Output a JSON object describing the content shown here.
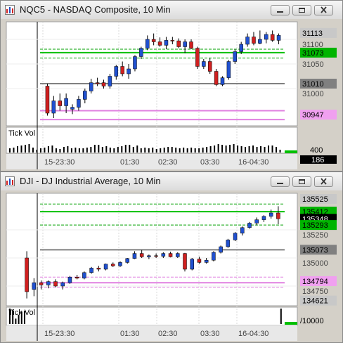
{
  "windows": [
    {
      "title": "NQC5 - NASDAQ Composite, 10 Min",
      "indicator_label": "Tick Vol",
      "price_labels": [
        "31113",
        "31100",
        "31073",
        "31050",
        "31010",
        "31000",
        "30947",
        "400",
        "186"
      ],
      "time_labels": [
        "15-23:30",
        "01:30",
        "02:30",
        "03:30",
        "16-04:30"
      ],
      "chart_data": {
        "type": "candlestick",
        "ylim": [
          30930,
          31130
        ],
        "yticks": [
          31100,
          31050,
          31000
        ],
        "highlights": [
          {
            "value": 31113,
            "label": "31113",
            "color": "#c8c8c8"
          },
          {
            "value": 31073,
            "label": "31073",
            "color": "#00b400"
          },
          {
            "value": 31010,
            "label": "31010",
            "color": "#808080"
          },
          {
            "value": 30947,
            "label": "30947",
            "color": "#f0a0f0"
          }
        ],
        "lines": [
          {
            "value": 31073,
            "color": "#00c000",
            "style": "solid"
          },
          {
            "value": 31080,
            "color": "#00a000",
            "style": "dashed"
          },
          {
            "value": 31062,
            "color": "#00a000",
            "style": "dashed"
          },
          {
            "value": 31010,
            "color": "#808080",
            "style": "solid"
          },
          {
            "value": 30955,
            "color": "#e080e0",
            "style": "solid"
          },
          {
            "value": 30937,
            "color": "#e080e0",
            "style": "solid"
          }
        ],
        "candles": [
          {
            "o": 31005,
            "h": 31010,
            "l": 30945,
            "c": 30950
          },
          {
            "o": 30950,
            "h": 30985,
            "l": 30940,
            "c": 30975
          },
          {
            "o": 30975,
            "h": 30990,
            "l": 30955,
            "c": 30965
          },
          {
            "o": 30965,
            "h": 30990,
            "l": 30950,
            "c": 30980
          },
          {
            "o": 30958,
            "h": 30968,
            "l": 30948,
            "c": 30962
          },
          {
            "o": 30962,
            "h": 30985,
            "l": 30955,
            "c": 30978
          },
          {
            "o": 30978,
            "h": 31000,
            "l": 30970,
            "c": 30995
          },
          {
            "o": 30995,
            "h": 31020,
            "l": 30990,
            "c": 31012
          },
          {
            "o": 31012,
            "h": 31022,
            "l": 31005,
            "c": 31010
          },
          {
            "o": 31012,
            "h": 31018,
            "l": 31000,
            "c": 31005
          },
          {
            "o": 31005,
            "h": 31030,
            "l": 31000,
            "c": 31025
          },
          {
            "o": 31025,
            "h": 31048,
            "l": 31018,
            "c": 31045
          },
          {
            "o": 31045,
            "h": 31055,
            "l": 31025,
            "c": 31030
          },
          {
            "o": 31030,
            "h": 31050,
            "l": 31020,
            "c": 31040
          },
          {
            "o": 31040,
            "h": 31068,
            "l": 31035,
            "c": 31065
          },
          {
            "o": 31065,
            "h": 31085,
            "l": 31060,
            "c": 31082
          },
          {
            "o": 31082,
            "h": 31108,
            "l": 31078,
            "c": 31100
          },
          {
            "o": 31100,
            "h": 31112,
            "l": 31088,
            "c": 31095
          },
          {
            "o": 31095,
            "h": 31104,
            "l": 31085,
            "c": 31088
          },
          {
            "o": 31088,
            "h": 31105,
            "l": 31080,
            "c": 31098
          },
          {
            "o": 31098,
            "h": 31105,
            "l": 31090,
            "c": 31097
          },
          {
            "o": 31097,
            "h": 31102,
            "l": 31082,
            "c": 31085
          },
          {
            "o": 31085,
            "h": 31100,
            "l": 31072,
            "c": 31095
          },
          {
            "o": 31095,
            "h": 31100,
            "l": 31080,
            "c": 31082
          },
          {
            "o": 31082,
            "h": 31085,
            "l": 31040,
            "c": 31045
          },
          {
            "o": 31045,
            "h": 31060,
            "l": 31040,
            "c": 31055
          },
          {
            "o": 31055,
            "h": 31062,
            "l": 31030,
            "c": 31035
          },
          {
            "o": 31035,
            "h": 31040,
            "l": 31005,
            "c": 31008
          },
          {
            "o": 31008,
            "h": 31025,
            "l": 31005,
            "c": 31022
          },
          {
            "o": 31022,
            "h": 31058,
            "l": 31018,
            "c": 31055
          },
          {
            "o": 31055,
            "h": 31080,
            "l": 31050,
            "c": 31075
          },
          {
            "o": 31075,
            "h": 31095,
            "l": 31070,
            "c": 31090
          },
          {
            "o": 31090,
            "h": 31112,
            "l": 31085,
            "c": 31105
          },
          {
            "o": 31105,
            "h": 31115,
            "l": 31088,
            "c": 31092
          },
          {
            "o": 31092,
            "h": 31118,
            "l": 31090,
            "c": 31100
          },
          {
            "o": 31100,
            "h": 31115,
            "l": 31092,
            "c": 31110
          },
          {
            "o": 31110,
            "h": 31118,
            "l": 31095,
            "c": 31098
          },
          {
            "o": 31098,
            "h": 31112,
            "l": 31090,
            "c": 31108
          }
        ],
        "volume": [
          0.3,
          0.35,
          0.45,
          0.5,
          0.55,
          0.6,
          0.35,
          0.2,
          0.3,
          0.35,
          0.45,
          0.5,
          0.3,
          0.25,
          0.4,
          0.45,
          0.3,
          0.35,
          0.3,
          0.3,
          0.35,
          0.4,
          0.55,
          0.55,
          0.4,
          0.45,
          0.35,
          0.3,
          0.4,
          0.45,
          0.55,
          0.55,
          0.4,
          0.5,
          0.3,
          0.35,
          0.3,
          0.35,
          0.25,
          0.3,
          0.35,
          0.4,
          0.4,
          0.35,
          0.3,
          0.35,
          0.3,
          0.35,
          0.3,
          0.3,
          0.35,
          0.4,
          0.45,
          0.5,
          0.6,
          0.55,
          0.5,
          0.55,
          0.6,
          0.5,
          0.45,
          0.4,
          0.45,
          0.5,
          0.4,
          0.45,
          0.4,
          0.5,
          0.5,
          0.4,
          0.2
        ]
      }
    },
    {
      "title": "DJI - DJ Industrial Average, 10 Min",
      "indicator_label": "Tick Vol",
      "price_labels": [
        "135525",
        "135412",
        "135348",
        "135293",
        "135250",
        "135073",
        "135000",
        "134794",
        "134750",
        "134621",
        "/10000"
      ],
      "time_labels": [
        "15-23:30",
        "01:30",
        "02:30",
        "03:30",
        "16-04:30"
      ],
      "chart_data": {
        "type": "candlestick",
        "ylim": [
          134600,
          135550
        ],
        "yticks": [
          135250,
          135000,
          134750
        ],
        "highlights": [
          {
            "value": 135525,
            "label": "135525",
            "color": "#c8c8c8"
          },
          {
            "value": 135412,
            "label": "135412",
            "color": "#00b400"
          },
          {
            "value": 135348,
            "label": "135348",
            "color": "#000000"
          },
          {
            "value": 135293,
            "label": "135293",
            "color": "#00b400"
          },
          {
            "value": 135073,
            "label": "135073",
            "color": "#808080"
          },
          {
            "value": 134794,
            "label": "134794",
            "color": "#f0a0f0"
          },
          {
            "value": 134621,
            "label": "134621",
            "color": "#c8c8c8"
          }
        ],
        "lines": [
          {
            "value": 135412,
            "color": "#00c000",
            "style": "solid"
          },
          {
            "value": 135480,
            "color": "#00a000",
            "style": "dashed"
          },
          {
            "value": 135293,
            "color": "#00a000",
            "style": "dashed"
          },
          {
            "value": 135073,
            "color": "#808080",
            "style": "solid"
          },
          {
            "value": 134830,
            "color": "#e080e0",
            "style": "dashed"
          },
          {
            "value": 134780,
            "color": "#e080e0",
            "style": "solid"
          },
          {
            "value": 134740,
            "color": "#e080e0",
            "style": "dashed"
          }
        ],
        "candles": [
          {
            "o": 135000,
            "h": 135060,
            "l": 134640,
            "c": 134700
          },
          {
            "o": 134720,
            "h": 134820,
            "l": 134660,
            "c": 134780
          },
          {
            "o": 134780,
            "h": 134800,
            "l": 134720,
            "c": 134760
          },
          {
            "o": 134760,
            "h": 134800,
            "l": 134730,
            "c": 134790
          },
          {
            "o": 134790,
            "h": 134810,
            "l": 134740,
            "c": 134750
          },
          {
            "o": 134750,
            "h": 134790,
            "l": 134720,
            "c": 134780
          },
          {
            "o": 134780,
            "h": 134840,
            "l": 134770,
            "c": 134830
          },
          {
            "o": 134830,
            "h": 134850,
            "l": 134810,
            "c": 134820
          },
          {
            "o": 134820,
            "h": 134880,
            "l": 134810,
            "c": 134870
          },
          {
            "o": 134870,
            "h": 134920,
            "l": 134860,
            "c": 134910
          },
          {
            "o": 134910,
            "h": 134930,
            "l": 134880,
            "c": 134900
          },
          {
            "o": 134900,
            "h": 134950,
            "l": 134890,
            "c": 134945
          },
          {
            "o": 134945,
            "h": 134960,
            "l": 134920,
            "c": 134930
          },
          {
            "o": 134930,
            "h": 134970,
            "l": 134920,
            "c": 134960
          },
          {
            "o": 134960,
            "h": 135000,
            "l": 134950,
            "c": 134995
          },
          {
            "o": 134995,
            "h": 135060,
            "l": 134990,
            "c": 135040
          },
          {
            "o": 135040,
            "h": 135070,
            "l": 135000,
            "c": 135010
          },
          {
            "o": 135010,
            "h": 135030,
            "l": 134990,
            "c": 135020
          },
          {
            "o": 135020,
            "h": 135040,
            "l": 135000,
            "c": 135015
          },
          {
            "o": 135015,
            "h": 135050,
            "l": 135000,
            "c": 135040
          },
          {
            "o": 135040,
            "h": 135055,
            "l": 135005,
            "c": 135010
          },
          {
            "o": 135010,
            "h": 135050,
            "l": 135000,
            "c": 135040
          },
          {
            "o": 135040,
            "h": 135045,
            "l": 134880,
            "c": 134900
          },
          {
            "o": 134900,
            "h": 135000,
            "l": 134890,
            "c": 134990
          },
          {
            "o": 134990,
            "h": 135010,
            "l": 134950,
            "c": 134960
          },
          {
            "o": 134960,
            "h": 135000,
            "l": 134950,
            "c": 134980
          },
          {
            "o": 134980,
            "h": 135060,
            "l": 134970,
            "c": 135050
          },
          {
            "o": 135050,
            "h": 135110,
            "l": 135040,
            "c": 135100
          },
          {
            "o": 135100,
            "h": 135170,
            "l": 135090,
            "c": 135160
          },
          {
            "o": 135160,
            "h": 135230,
            "l": 135150,
            "c": 135220
          },
          {
            "o": 135220,
            "h": 135280,
            "l": 135200,
            "c": 135270
          },
          {
            "o": 135270,
            "h": 135320,
            "l": 135260,
            "c": 135310
          },
          {
            "o": 135310,
            "h": 135360,
            "l": 135290,
            "c": 135340
          },
          {
            "o": 135340,
            "h": 135380,
            "l": 135320,
            "c": 135370
          },
          {
            "o": 135370,
            "h": 135430,
            "l": 135350,
            "c": 135400
          },
          {
            "o": 135400,
            "h": 135460,
            "l": 135300,
            "c": 135348
          }
        ],
        "volume": [
          1,
          0.9,
          0.35,
          0.6,
          0.8,
          0.85,
          0,
          0,
          0,
          0,
          0,
          0,
          0,
          0,
          0,
          0,
          0,
          0,
          0,
          0,
          0,
          0,
          0,
          0,
          0,
          0,
          0,
          0,
          0,
          0,
          0,
          0,
          0,
          0,
          0,
          0,
          0,
          0,
          0,
          0,
          0,
          0,
          0,
          0,
          0,
          0,
          0,
          0,
          0,
          0,
          0,
          0,
          0,
          0,
          0,
          0,
          0,
          0,
          0,
          0,
          0,
          0,
          0,
          0,
          0,
          0,
          0,
          0,
          0,
          0,
          0,
          0,
          0,
          0,
          0,
          0,
          0,
          0,
          0,
          0,
          0,
          0,
          0,
          0,
          0,
          0,
          0,
          0,
          0,
          0,
          0,
          0,
          1
        ]
      }
    }
  ]
}
